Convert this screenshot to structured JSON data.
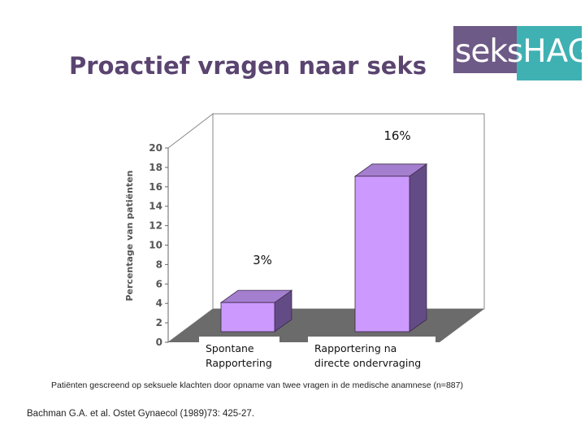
{
  "slide": {
    "title": "Proactief vragen naar seks",
    "logo": {
      "text": "seksHAG",
      "icon": "sekshag-logo",
      "colors": {
        "left": "#6e5a86",
        "right": "#3fb1b3"
      }
    },
    "caption": "Patiënten gescreend op seksuele klachten door opname van twee vragen in de medische anamnese (n=887)",
    "citation": "Bachman G.A. et al. Ostet Gynaecol (1989)73: 425-27."
  },
  "chart_data": {
    "type": "bar",
    "style": "3d",
    "categories": [
      [
        "Spontane",
        "Rapportering"
      ],
      [
        "Rapportering na",
        "directe ondervraging"
      ]
    ],
    "values": [
      3,
      16
    ],
    "data_labels": [
      "3%",
      "16%"
    ],
    "ylabel": "Percentage van patiënten",
    "ylim": [
      0,
      20
    ],
    "yticks": [
      0,
      2,
      4,
      6,
      8,
      10,
      12,
      14,
      16,
      18,
      20
    ],
    "grid": false,
    "colors": {
      "bar_front": "#cc99ff",
      "bar_top": "#a57fcf",
      "bar_side": "#634c86",
      "floor": "#6b6b6b"
    }
  }
}
